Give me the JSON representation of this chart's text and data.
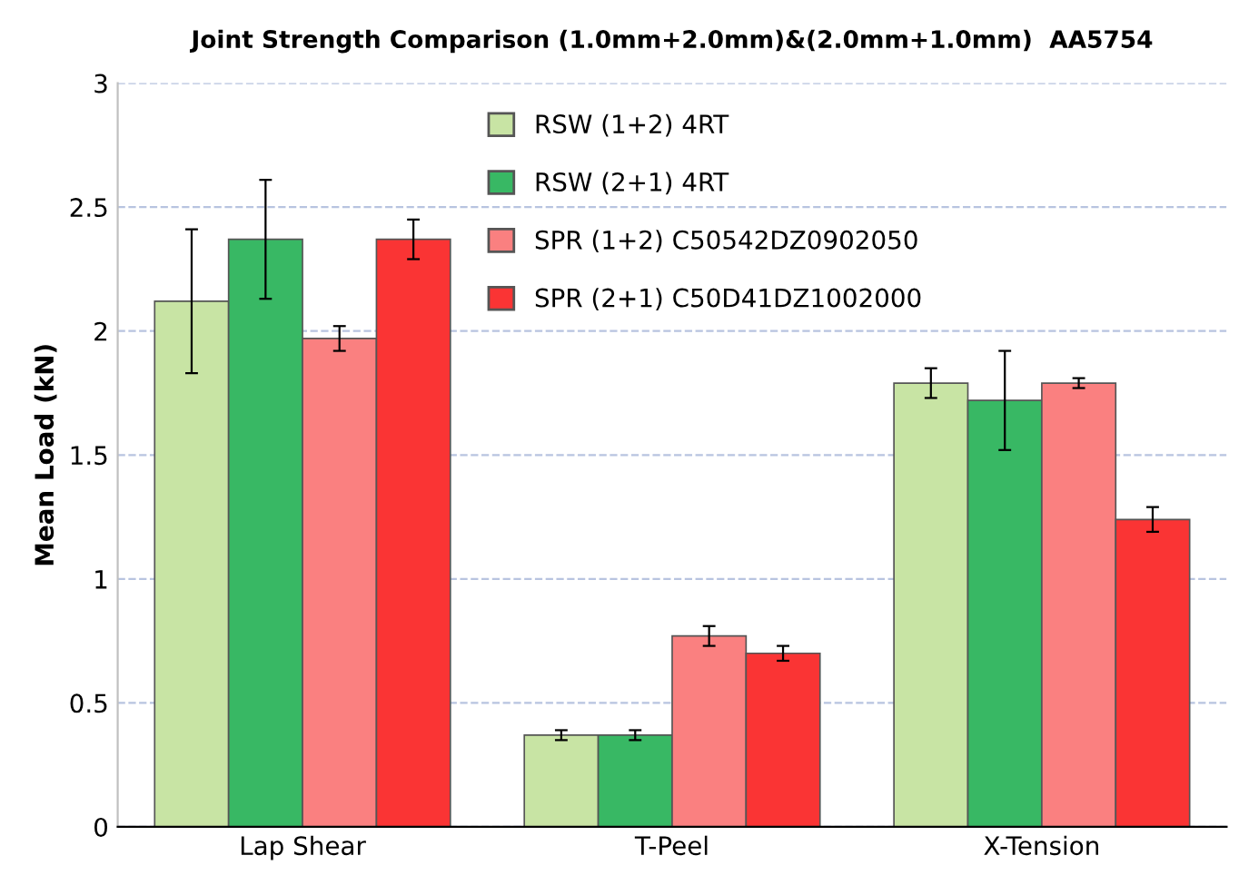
{
  "chart_data": {
    "type": "bar",
    "title": "Joint Strength Comparison (1.0mm+2.0mm)&(2.0mm+1.0mm)  AA5754",
    "ylabel": "Mean Load (kN)",
    "categories": [
      "Lap Shear",
      "T-Peel",
      "X-Tension"
    ],
    "series": [
      {
        "name": "RSW (1+2) 4RT",
        "color": "#c8e4a4",
        "values": [
          2.12,
          0.37,
          1.79
        ],
        "errors": [
          0.29,
          0.02,
          0.06
        ]
      },
      {
        "name": "RSW (2+1) 4RT",
        "color": "#38b864",
        "values": [
          2.37,
          0.37,
          1.72
        ],
        "errors": [
          0.24,
          0.02,
          0.2
        ]
      },
      {
        "name": "SPR (1+2) C50542DZ0902050",
        "color": "#fa8080",
        "values": [
          1.97,
          0.77,
          1.79
        ],
        "errors": [
          0.05,
          0.04,
          0.02
        ]
      },
      {
        "name": "SPR (2+1) C50D41DZ1002000",
        "color": "#fa3434",
        "values": [
          2.37,
          0.7,
          1.24
        ],
        "errors": [
          0.08,
          0.03,
          0.05
        ]
      }
    ],
    "ylim": [
      0,
      3
    ],
    "yticks": [
      0,
      0.5,
      1,
      1.5,
      2,
      2.5,
      3
    ],
    "grid": "y",
    "legend": "top"
  }
}
